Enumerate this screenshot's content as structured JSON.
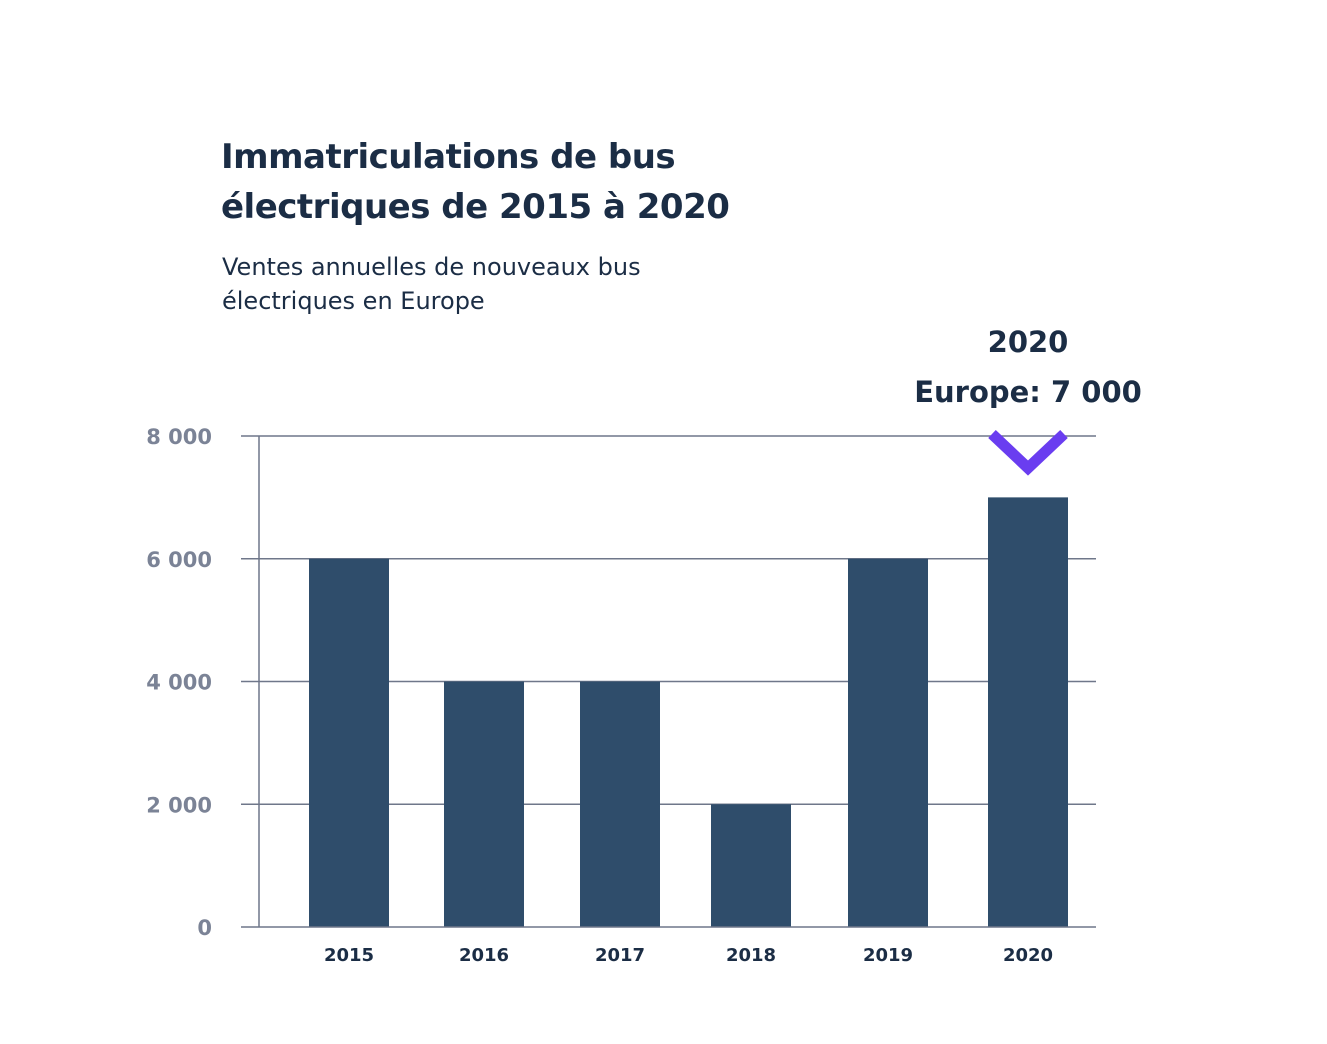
{
  "chart_data": {
    "type": "bar",
    "title_line1": "Immatriculations de bus",
    "title_line2": "électriques de 2015 à 2020",
    "subtitle_line1": "Ventes annuelles de nouveaux bus",
    "subtitle_line2": "électriques en Europe",
    "categories": [
      "2015",
      "2016",
      "2017",
      "2018",
      "2019",
      "2020"
    ],
    "values": [
      6000,
      4000,
      4000,
      2000,
      6000,
      7000
    ],
    "ylim": [
      0,
      8000
    ],
    "yticks": [
      0,
      2000,
      4000,
      6000,
      8000
    ],
    "ytick_labels": [
      "0",
      "2 000",
      "4 000",
      "6 000",
      "8 000"
    ],
    "xlabel": "",
    "ylabel": "",
    "grid": true,
    "annotation": {
      "category": "2020",
      "line1": "2020",
      "line2": "Europe: 7 000"
    },
    "colors": {
      "bar": "#2f4d6b",
      "marker": "#6a3df0",
      "grid": "#6f778a",
      "text": "#1b2d45",
      "tick": "#7b8396"
    }
  }
}
